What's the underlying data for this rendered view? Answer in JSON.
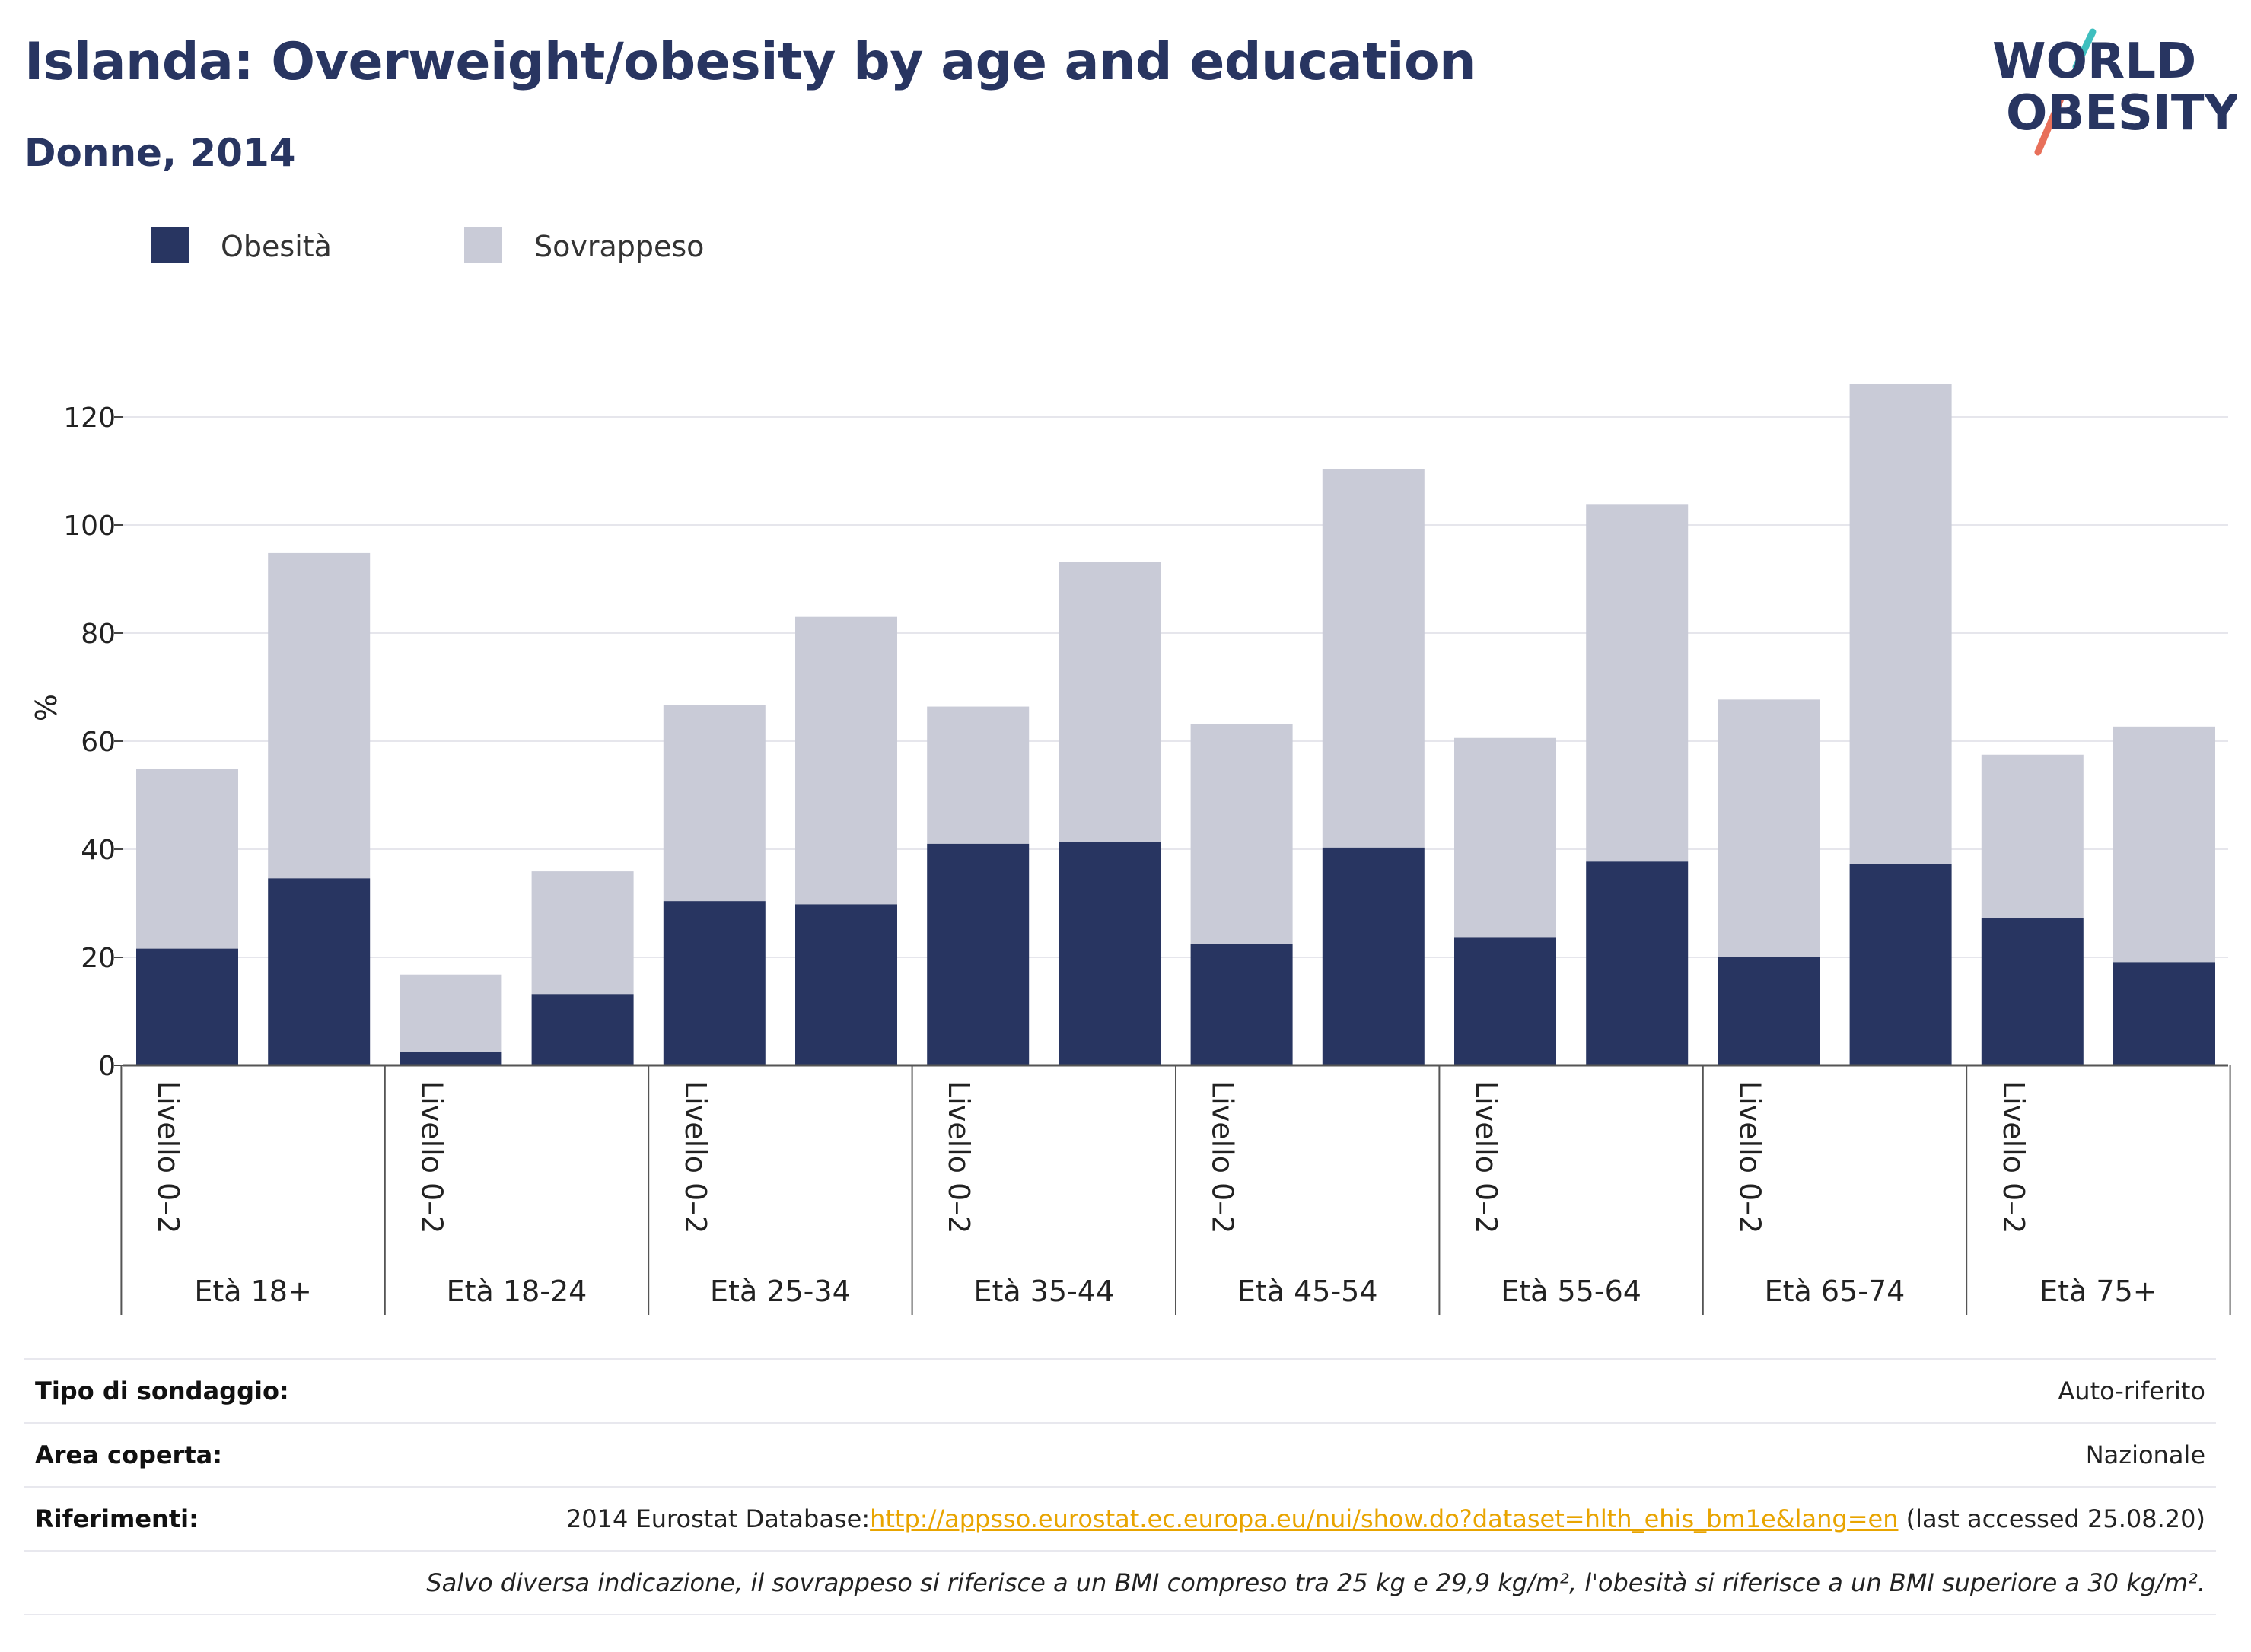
{
  "header": {
    "title": "Islanda: Overweight/obesity by age and education",
    "subtitle": "Donne, 2014"
  },
  "logo": {
    "line1": "WORLD",
    "line2": "OBESITY"
  },
  "legend": [
    {
      "label": "Obesità",
      "color": "#283561"
    },
    {
      "label": "Sovrappeso",
      "color": "#c9cbd7"
    }
  ],
  "chart_data": {
    "type": "bar",
    "stacked": true,
    "ylabel": "%",
    "ylim": [
      0,
      130
    ],
    "yticks": [
      0,
      20,
      40,
      60,
      80,
      100,
      120
    ],
    "grid": true,
    "legend_position": "top-left",
    "groups": [
      "Età 18+",
      "Età 18-24",
      "Età 25-34",
      "Età 35-44",
      "Età 45-54",
      "Età 55-64",
      "Età 65-74",
      "Età 75+"
    ],
    "bar_labels": [
      "Livello 0–2",
      "",
      "Livello 0–2",
      "",
      "Livello 0–2",
      "",
      "Livello 0–2",
      "",
      "Livello 0–2",
      "",
      "Livello 0–2",
      "",
      "Livello 0–2",
      "",
      "Livello 0–2",
      ""
    ],
    "series": [
      {
        "name": "Obesità",
        "color": "#283561",
        "values": [
          21.6,
          34.6,
          2.4,
          13.2,
          30.4,
          29.8,
          41.0,
          41.3,
          22.4,
          40.3,
          23.6,
          37.7,
          20.0,
          37.2,
          27.2,
          19.1
        ]
      },
      {
        "name": "Sovrappeso",
        "color": "#c9cbd7",
        "values": [
          33.2,
          60.2,
          14.4,
          22.7,
          36.3,
          53.2,
          25.4,
          51.8,
          40.7,
          70.0,
          37.0,
          66.2,
          47.7,
          88.9,
          30.3,
          43.6
        ]
      }
    ]
  },
  "info": {
    "survey_label": "Tipo di sondaggio:",
    "survey_value": "Auto-riferito",
    "area_label": "Area coperta:",
    "area_value": "Nazionale",
    "ref_label": "Riferimenti:",
    "ref_prefix": "2014 Eurostat Database:",
    "ref_link": "http://appsso.eurostat.ec.europa.eu/nui/show.do?dataset=hlth_ehis_bm1e&lang=en",
    "ref_suffix": " (last accessed 25.08.20)",
    "note": "Salvo diversa indicazione, il sovrappeso si riferisce a un BMI compreso tra 25 kg e 29,9 kg/m², l'obesità si riferisce a un BMI superiore a 30 kg/m²."
  }
}
